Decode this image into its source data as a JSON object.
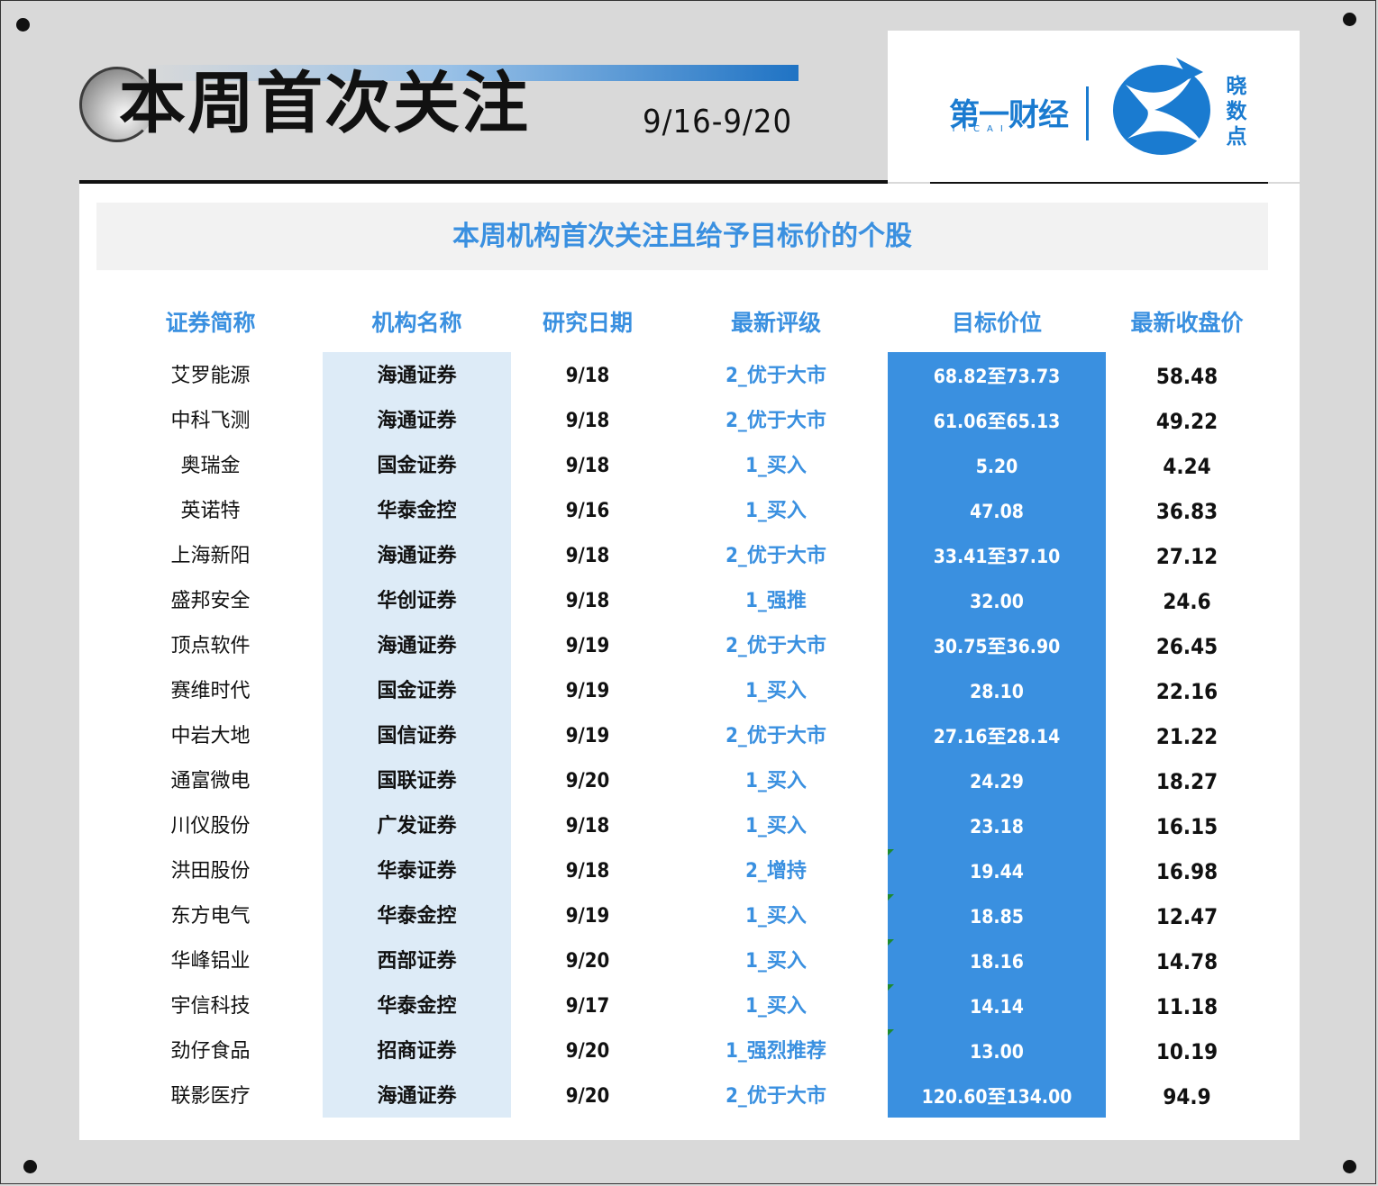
{
  "header": {
    "title": "本周首次关注",
    "date_range": "9/16-9/20"
  },
  "logo": {
    "brand": "第一财经",
    "brand_sub": "YICAI",
    "product": "晓数点"
  },
  "table": {
    "subtitle": "本周机构首次关注且给予目标价的个股",
    "columns": [
      "证券简称",
      "机构名称",
      "研究日期",
      "最新评级",
      "目标价位",
      "最新收盘价"
    ],
    "rows": [
      {
        "name": "艾罗能源",
        "inst": "海通证券",
        "date": "9/18",
        "rating": "2_优于大市",
        "target": "68.82至73.73",
        "close": "58.48",
        "flag": false
      },
      {
        "name": "中科飞测",
        "inst": "海通证券",
        "date": "9/18",
        "rating": "2_优于大市",
        "target": "61.06至65.13",
        "close": "49.22",
        "flag": false
      },
      {
        "name": "奥瑞金",
        "inst": "国金证券",
        "date": "9/18",
        "rating": "1_买入",
        "target": "5.20",
        "close": "4.24",
        "flag": false
      },
      {
        "name": "英诺特",
        "inst": "华泰金控",
        "date": "9/16",
        "rating": "1_买入",
        "target": "47.08",
        "close": "36.83",
        "flag": false
      },
      {
        "name": "上海新阳",
        "inst": "海通证券",
        "date": "9/18",
        "rating": "2_优于大市",
        "target": "33.41至37.10",
        "close": "27.12",
        "flag": false
      },
      {
        "name": "盛邦安全",
        "inst": "华创证券",
        "date": "9/18",
        "rating": "1_强推",
        "target": "32.00",
        "close": "24.6",
        "flag": false
      },
      {
        "name": "顶点软件",
        "inst": "海通证券",
        "date": "9/19",
        "rating": "2_优于大市",
        "target": "30.75至36.90",
        "close": "26.45",
        "flag": false
      },
      {
        "name": "赛维时代",
        "inst": "国金证券",
        "date": "9/19",
        "rating": "1_买入",
        "target": "28.10",
        "close": "22.16",
        "flag": false
      },
      {
        "name": "中岩大地",
        "inst": "国信证券",
        "date": "9/19",
        "rating": "2_优于大市",
        "target": "27.16至28.14",
        "close": "21.22",
        "flag": false
      },
      {
        "name": "通富微电",
        "inst": "国联证券",
        "date": "9/20",
        "rating": "1_买入",
        "target": "24.29",
        "close": "18.27",
        "flag": false
      },
      {
        "name": "川仪股份",
        "inst": "广发证券",
        "date": "9/18",
        "rating": "1_买入",
        "target": "23.18",
        "close": "16.15",
        "flag": false
      },
      {
        "name": "洪田股份",
        "inst": "华泰证券",
        "date": "9/18",
        "rating": "2_增持",
        "target": "19.44",
        "close": "16.98",
        "flag": true
      },
      {
        "name": "东方电气",
        "inst": "华泰金控",
        "date": "9/19",
        "rating": "1_买入",
        "target": "18.85",
        "close": "12.47",
        "flag": true
      },
      {
        "name": "华峰铝业",
        "inst": "西部证券",
        "date": "9/20",
        "rating": "1_买入",
        "target": "18.16",
        "close": "14.78",
        "flag": true
      },
      {
        "name": "宇信科技",
        "inst": "华泰金控",
        "date": "9/17",
        "rating": "1_买入",
        "target": "14.14",
        "close": "11.18",
        "flag": true
      },
      {
        "name": "劲仔食品",
        "inst": "招商证券",
        "date": "9/20",
        "rating": "1_强烈推荐",
        "target": "13.00",
        "close": "10.19",
        "flag": true
      },
      {
        "name": "联影医疗",
        "inst": "海通证券",
        "date": "9/20",
        "rating": "2_优于大市",
        "target": "120.60至134.00",
        "close": "94.9",
        "flag": false
      }
    ]
  },
  "colors": {
    "accent_blue": "#3a90e0",
    "inst_column_bg": "#ddebf7",
    "page_bg": "#d9d9d9"
  }
}
